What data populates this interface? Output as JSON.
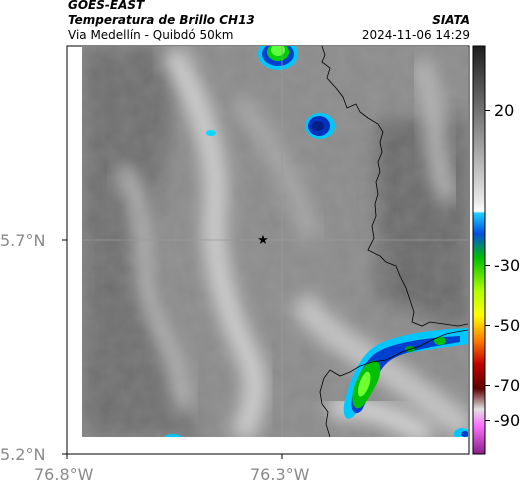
{
  "header": {
    "satellite": "GOES-EAST",
    "product": "Temperatura de Brillo CH13",
    "route": "Via Medellín - Quibdó 50km",
    "org": "SIATA",
    "datetime": "2024-11-06 14:29"
  },
  "axes": {
    "lat_ticks": [
      "5.7°N",
      "5.2°N"
    ],
    "lon_ticks": [
      "76.8°W",
      "76.3°W"
    ]
  },
  "colorbar": {
    "ticks": [
      "20",
      "-30",
      "-50",
      "-70",
      "-90"
    ],
    "colors": [
      "#2a2a2a",
      "#d8d8d8",
      "#00c8ff",
      "#0030c0",
      "#00d000",
      "#ffff00",
      "#ff6000",
      "#c00000",
      "#ff60ff",
      "#800080"
    ]
  },
  "map_features": [
    "reference-marker",
    "border-line",
    "gridlines",
    "cloud-cells"
  ]
}
